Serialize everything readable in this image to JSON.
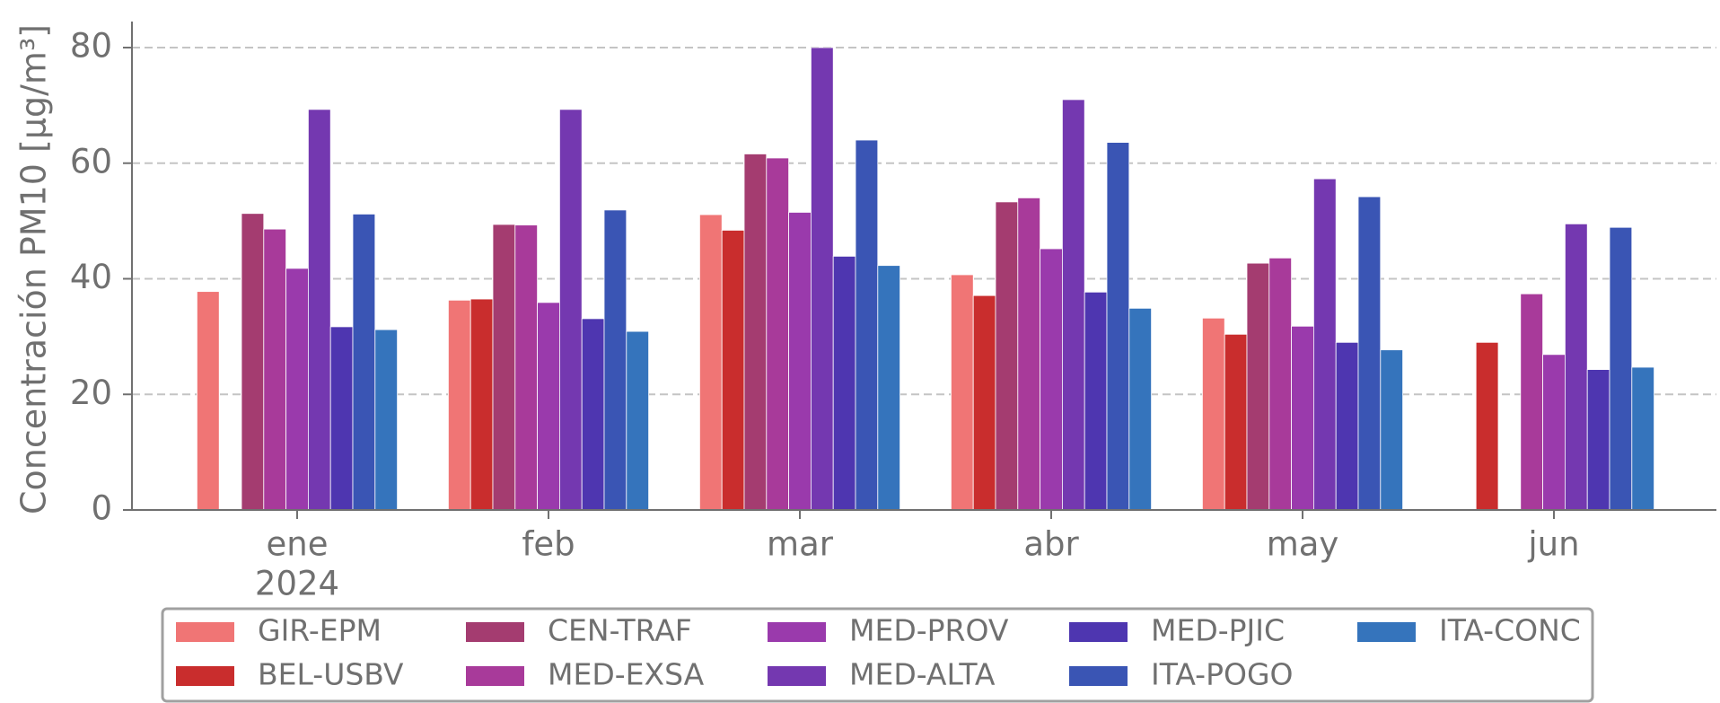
{
  "chart_data": {
    "type": "bar",
    "y_label": "Concentración PM10 [μg/m³]",
    "categories": [
      "ene",
      "feb",
      "mar",
      "abr",
      "may",
      "jun"
    ],
    "x_year_label": "2024",
    "ylim": [
      0,
      80
    ],
    "yticks": [
      0,
      20,
      40,
      60,
      80
    ],
    "grid": true,
    "legend_position": "bottom",
    "series": [
      {
        "name": "GIR-EPM",
        "color": "#f07575",
        "values": [
          37.8,
          36.3,
          51.1,
          40.7,
          33.2,
          null
        ]
      },
      {
        "name": "BEL-USBV",
        "color": "#c92d2d",
        "values": [
          null,
          36.5,
          48.4,
          37.1,
          30.4,
          29.0
        ]
      },
      {
        "name": "CEN-TRAF",
        "color": "#a43c70",
        "values": [
          51.3,
          49.4,
          61.6,
          53.3,
          42.7,
          null
        ]
      },
      {
        "name": "MED-EXSA",
        "color": "#a83a9a",
        "values": [
          48.6,
          49.3,
          60.9,
          54.0,
          43.6,
          37.4
        ]
      },
      {
        "name": "MED-PROV",
        "color": "#9a3aac",
        "values": [
          41.8,
          35.9,
          51.5,
          45.2,
          31.8,
          26.9
        ]
      },
      {
        "name": "MED-ALTA",
        "color": "#7438b0",
        "values": [
          69.3,
          69.3,
          80.0,
          71.0,
          57.3,
          49.5
        ]
      },
      {
        "name": "MED-PJIC",
        "color": "#4e36b0",
        "values": [
          31.7,
          33.1,
          43.9,
          37.7,
          29.0,
          24.3
        ]
      },
      {
        "name": "ITA-POGO",
        "color": "#3a55b4",
        "values": [
          51.2,
          51.9,
          64.0,
          63.6,
          54.2,
          48.9
        ]
      },
      {
        "name": "ITA-CONC",
        "color": "#3574bc",
        "values": [
          31.2,
          30.9,
          42.3,
          34.9,
          27.7,
          24.7
        ]
      }
    ]
  }
}
